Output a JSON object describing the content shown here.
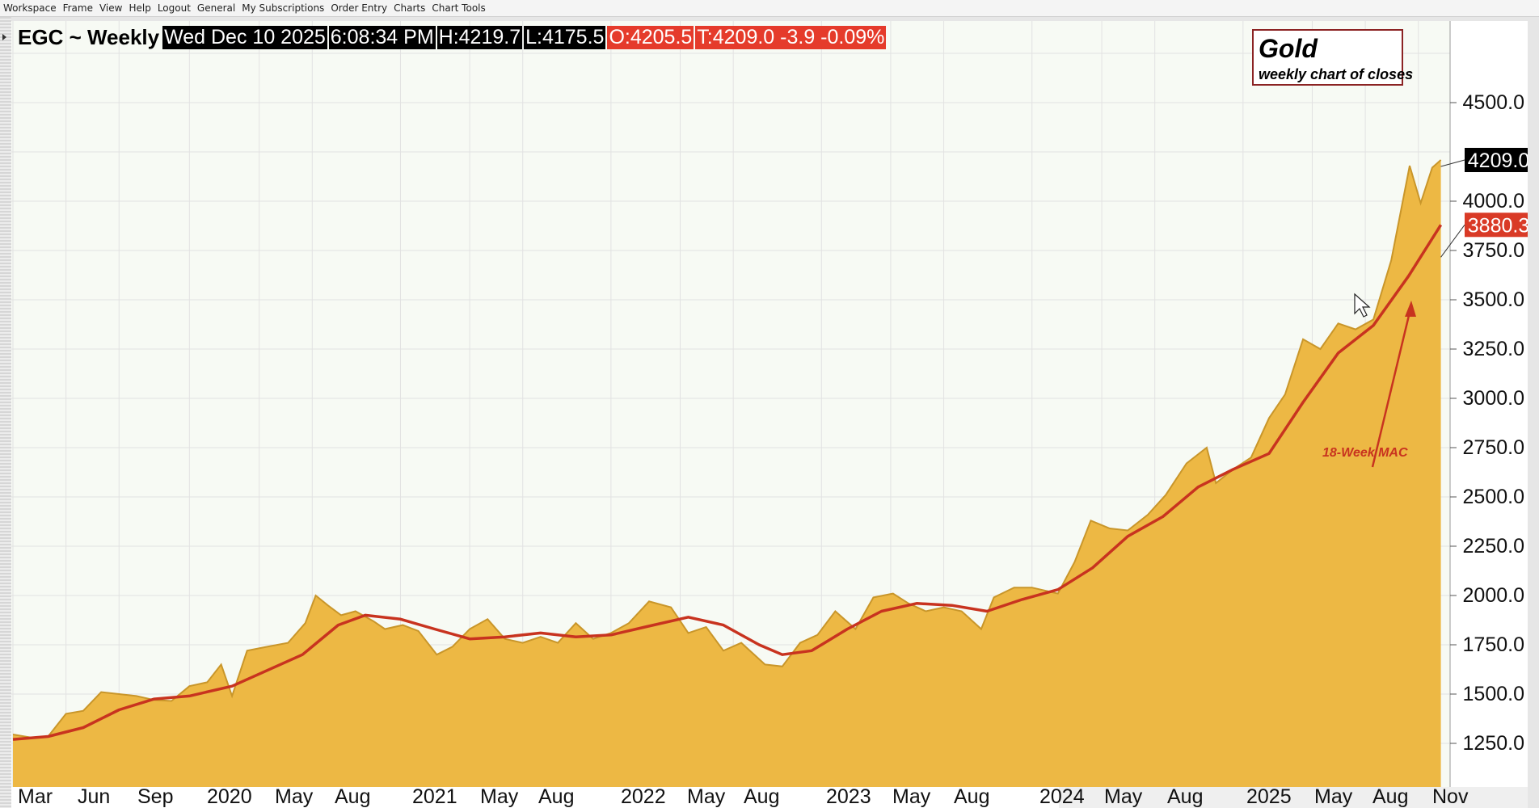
{
  "menu": [
    "Workspace",
    "Frame",
    "View",
    "Help",
    "Logout",
    "General",
    "My Subscriptions",
    "Order Entry",
    "Charts",
    "Chart Tools"
  ],
  "header": {
    "symbol": "EGC ~ Weekly",
    "date": "Wed Dec 10 2025",
    "time": "6:08:34 PM",
    "high": "H:4219.7",
    "low": "L:4175.5",
    "open": "O:4205.5",
    "last": "T:4209.0  -3.9  -0.09%"
  },
  "legend": {
    "title": "Gold",
    "subtitle": "weekly chart of closes"
  },
  "annotation": "18-Week MAC",
  "colors": {
    "area_fill": "#EDB844",
    "area_line": "#C9962A",
    "ma_line": "#C8331F",
    "price_badge": "#000000",
    "ma_badge": "#D93A26",
    "grid": "#E2E2E2"
  },
  "chart_data": {
    "type": "area",
    "x_axis": "weekly dates",
    "ylim": [
      1125,
      5000
    ],
    "y_ticks": [
      "1250.0",
      "1500.0",
      "1750.0",
      "2000.0",
      "2250.0",
      "2500.0",
      "2750.0",
      "3000.0",
      "3250.0",
      "3500.0",
      "3750.0",
      "4000.0",
      "4500.0"
    ],
    "x_ticks": [
      "Mar",
      "Jun",
      "Sep",
      "2020",
      "May",
      "Aug",
      "2021",
      "May",
      "Aug",
      "2022",
      "May",
      "Aug",
      "2023",
      "May",
      "Aug",
      "2024",
      "May",
      "Aug",
      "2025",
      "May",
      "Aug",
      "Nov"
    ],
    "x_range": [
      "2019-03",
      "2025-12"
    ],
    "grid": true,
    "last_price_label": "4209.0",
    "ma_label": "3880.3",
    "series": [
      {
        "name": "",
        "points": [
          [
            "2019-03-01",
            1295
          ],
          [
            "2019-04-01",
            1280
          ],
          [
            "2019-05-01",
            1285
          ],
          [
            "2019-06-01",
            1400
          ],
          [
            "2019-07-01",
            1415
          ],
          [
            "2019-08-01",
            1510
          ],
          [
            "2019-09-01",
            1500
          ],
          [
            "2019-10-01",
            1490
          ],
          [
            "2019-11-01",
            1470
          ],
          [
            "2019-12-01",
            1465
          ],
          [
            "2020-01-01",
            1540
          ],
          [
            "2020-02-01",
            1560
          ],
          [
            "2020-02-25",
            1650
          ],
          [
            "2020-03-15",
            1490
          ],
          [
            "2020-04-10",
            1720
          ],
          [
            "2020-05-15",
            1740
          ],
          [
            "2020-06-20",
            1760
          ],
          [
            "2020-07-20",
            1860
          ],
          [
            "2020-08-07",
            2000
          ],
          [
            "2020-08-28",
            1950
          ],
          [
            "2020-09-20",
            1900
          ],
          [
            "2020-10-15",
            1920
          ],
          [
            "2020-11-15",
            1870
          ],
          [
            "2020-12-05",
            1830
          ],
          [
            "2021-01-05",
            1850
          ],
          [
            "2021-02-01",
            1820
          ],
          [
            "2021-03-05",
            1700
          ],
          [
            "2021-04-01",
            1740
          ],
          [
            "2021-05-01",
            1830
          ],
          [
            "2021-06-01",
            1880
          ],
          [
            "2021-07-01",
            1780
          ],
          [
            "2021-08-01",
            1760
          ],
          [
            "2021-09-01",
            1790
          ],
          [
            "2021-10-01",
            1760
          ],
          [
            "2021-11-01",
            1860
          ],
          [
            "2021-12-01",
            1780
          ],
          [
            "2022-01-01",
            1810
          ],
          [
            "2022-02-01",
            1860
          ],
          [
            "2022-03-08",
            1970
          ],
          [
            "2022-04-15",
            1940
          ],
          [
            "2022-05-15",
            1810
          ],
          [
            "2022-06-15",
            1840
          ],
          [
            "2022-07-15",
            1720
          ],
          [
            "2022-08-15",
            1760
          ],
          [
            "2022-09-25",
            1650
          ],
          [
            "2022-10-25",
            1640
          ],
          [
            "2022-11-25",
            1760
          ],
          [
            "2022-12-25",
            1800
          ],
          [
            "2023-01-25",
            1920
          ],
          [
            "2023-03-01",
            1830
          ],
          [
            "2023-04-01",
            1990
          ],
          [
            "2023-05-05",
            2010
          ],
          [
            "2023-06-01",
            1960
          ],
          [
            "2023-07-01",
            1920
          ],
          [
            "2023-08-01",
            1940
          ],
          [
            "2023-09-01",
            1920
          ],
          [
            "2023-10-05",
            1830
          ],
          [
            "2023-10-27",
            1990
          ],
          [
            "2023-12-01",
            2040
          ],
          [
            "2024-01-01",
            2040
          ],
          [
            "2024-02-15",
            2010
          ],
          [
            "2024-03-15",
            2170
          ],
          [
            "2024-04-12",
            2380
          ],
          [
            "2024-05-15",
            2340
          ],
          [
            "2024-06-15",
            2330
          ],
          [
            "2024-07-20",
            2410
          ],
          [
            "2024-08-20",
            2510
          ],
          [
            "2024-09-25",
            2670
          ],
          [
            "2024-10-30",
            2750
          ],
          [
            "2024-11-15",
            2570
          ],
          [
            "2024-12-15",
            2640
          ],
          [
            "2025-01-15",
            2700
          ],
          [
            "2025-02-15",
            2900
          ],
          [
            "2025-03-15",
            3020
          ],
          [
            "2025-04-15",
            3300
          ],
          [
            "2025-05-15",
            3250
          ],
          [
            "2025-06-15",
            3380
          ],
          [
            "2025-07-15",
            3350
          ],
          [
            "2025-08-15",
            3400
          ],
          [
            "2025-09-15",
            3700
          ],
          [
            "2025-10-17",
            4180
          ],
          [
            "2025-11-05",
            3990
          ],
          [
            "2025-11-25",
            4170
          ],
          [
            "2025-12-10",
            4209
          ]
        ]
      },
      {
        "name": "18-Week MAC",
        "points": [
          [
            "2019-03-01",
            1270
          ],
          [
            "2019-05-01",
            1285
          ],
          [
            "2019-07-01",
            1330
          ],
          [
            "2019-09-01",
            1420
          ],
          [
            "2019-11-01",
            1475
          ],
          [
            "2020-01-01",
            1490
          ],
          [
            "2020-03-15",
            1540
          ],
          [
            "2020-05-15",
            1620
          ],
          [
            "2020-07-15",
            1700
          ],
          [
            "2020-09-15",
            1850
          ],
          [
            "2020-11-01",
            1900
          ],
          [
            "2021-01-01",
            1880
          ],
          [
            "2021-03-01",
            1830
          ],
          [
            "2021-05-01",
            1780
          ],
          [
            "2021-07-01",
            1790
          ],
          [
            "2021-09-01",
            1810
          ],
          [
            "2021-11-01",
            1790
          ],
          [
            "2022-01-01",
            1800
          ],
          [
            "2022-03-01",
            1840
          ],
          [
            "2022-05-15",
            1890
          ],
          [
            "2022-07-15",
            1850
          ],
          [
            "2022-09-15",
            1750
          ],
          [
            "2022-10-25",
            1700
          ],
          [
            "2022-12-15",
            1720
          ],
          [
            "2023-02-15",
            1830
          ],
          [
            "2023-04-15",
            1920
          ],
          [
            "2023-06-15",
            1960
          ],
          [
            "2023-08-15",
            1950
          ],
          [
            "2023-10-15",
            1920
          ],
          [
            "2023-12-15",
            1980
          ],
          [
            "2024-02-15",
            2030
          ],
          [
            "2024-04-15",
            2140
          ],
          [
            "2024-06-15",
            2300
          ],
          [
            "2024-08-15",
            2400
          ],
          [
            "2024-10-15",
            2550
          ],
          [
            "2024-12-15",
            2640
          ],
          [
            "2025-02-15",
            2720
          ],
          [
            "2025-04-15",
            2980
          ],
          [
            "2025-06-15",
            3230
          ],
          [
            "2025-08-15",
            3370
          ],
          [
            "2025-10-15",
            3620
          ],
          [
            "2025-12-10",
            3880
          ]
        ]
      }
    ]
  }
}
